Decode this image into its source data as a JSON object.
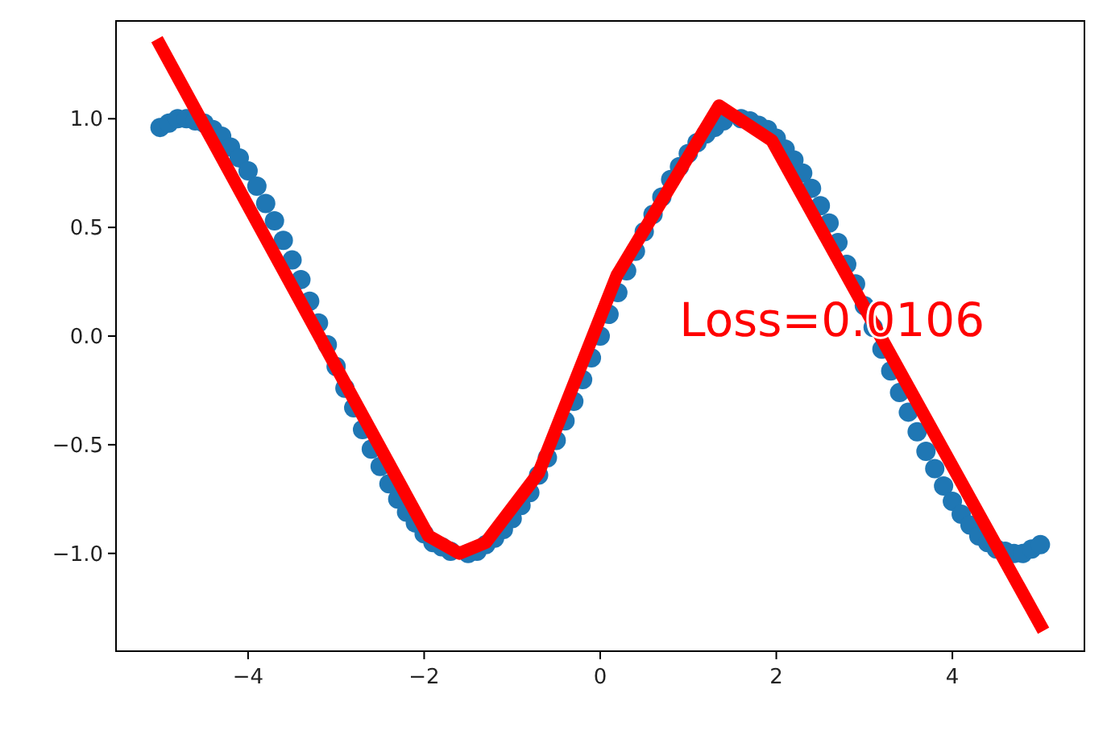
{
  "chart_data": {
    "type": "scatter",
    "xlim": [
      -5.5,
      5.5
    ],
    "ylim": [
      -1.45,
      1.45
    ],
    "xticks": [
      {
        "value": -4,
        "label": "−4"
      },
      {
        "value": -2,
        "label": "−2"
      },
      0,
      2,
      4
    ],
    "yticks": [
      {
        "value": -1,
        "label": "−1.0"
      },
      {
        "value": -0.5,
        "label": "−0.5"
      },
      {
        "value": 0,
        "label": "0.0"
      },
      {
        "value": 0.5,
        "label": "0.5"
      },
      {
        "value": 1,
        "label": "1.0"
      }
    ],
    "grid": false,
    "annotations": [
      "Loss=0.0106"
    ],
    "series": [
      {
        "color": "#1f77b4",
        "marker": "circle",
        "x": [
          -5,
          -4.9,
          -4.8,
          -4.7,
          -4.6,
          -4.5,
          -4.4,
          -4.3,
          -4.2,
          -4.1,
          -4,
          -3.9,
          -3.8,
          -3.7,
          -3.6,
          -3.5,
          -3.4,
          -3.3,
          -3.2,
          -3.1,
          -3,
          -2.9,
          -2.8,
          -2.7,
          -2.6,
          -2.5,
          -2.4,
          -2.3,
          -2.2,
          -2.1,
          -2,
          -1.9,
          -1.8,
          -1.7,
          -1.5,
          -1.4,
          -1.3,
          -1.2,
          -1.1,
          -1,
          -0.9,
          -0.8,
          -0.7,
          -0.6,
          -0.5,
          -0.4,
          -0.3,
          -0.2,
          -0.1,
          0,
          0.1,
          0.2,
          0.3,
          0.4,
          0.5,
          0.6,
          0.7,
          0.8,
          0.9,
          1,
          1.1,
          1.2,
          1.3,
          1.4,
          1.6,
          1.7,
          1.8,
          1.9,
          2,
          2.1,
          2.2,
          2.3,
          2.4,
          2.5,
          2.6,
          2.7,
          2.8,
          2.9,
          3,
          3.1,
          3.2,
          3.3,
          3.4,
          3.5,
          3.6,
          3.7,
          3.8,
          3.9,
          4,
          4.1,
          4.2,
          4.3,
          4.4,
          4.5,
          4.6,
          4.7,
          4.8,
          4.9,
          5
        ],
        "values": [
          0.96,
          0.98,
          1,
          1,
          0.99,
          0.98,
          0.95,
          0.92,
          0.87,
          0.82,
          0.76,
          0.69,
          0.61,
          0.53,
          0.44,
          0.35,
          0.26,
          0.16,
          0.06,
          -0.04,
          -0.14,
          -0.24,
          -0.33,
          -0.43,
          -0.52,
          -0.6,
          -0.68,
          -0.75,
          -0.81,
          -0.86,
          -0.91,
          -0.95,
          -0.97,
          -0.99,
          -1,
          -0.99,
          -0.96,
          -0.93,
          -0.89,
          -0.84,
          -0.78,
          -0.72,
          -0.64,
          -0.56,
          -0.48,
          -0.39,
          -0.3,
          -0.2,
          -0.1,
          0,
          0.1,
          0.2,
          0.3,
          0.39,
          0.48,
          0.56,
          0.64,
          0.72,
          0.78,
          0.84,
          0.89,
          0.93,
          0.96,
          0.99,
          1,
          0.99,
          0.97,
          0.95,
          0.91,
          0.86,
          0.81,
          0.75,
          0.68,
          0.6,
          0.52,
          0.43,
          0.33,
          0.24,
          0.14,
          0.04,
          -0.06,
          -0.16,
          -0.26,
          -0.35,
          -0.44,
          -0.53,
          -0.61,
          -0.69,
          -0.76,
          -0.82,
          -0.87,
          -0.92,
          -0.95,
          -0.98,
          -0.99,
          -1,
          -1,
          -0.98,
          -0.96
        ]
      },
      {
        "type": "line",
        "color": "#ff0000",
        "line_style": "solid",
        "marker": "none",
        "x": [
          -5,
          -1.95,
          -1.6,
          -1.3,
          -0.7,
          0.19,
          1.35,
          1.95,
          5
        ],
        "values": [
          1.34,
          -0.92,
          -1,
          -0.95,
          -0.63,
          0.28,
          1.06,
          0.9,
          -1.33
        ]
      }
    ]
  }
}
